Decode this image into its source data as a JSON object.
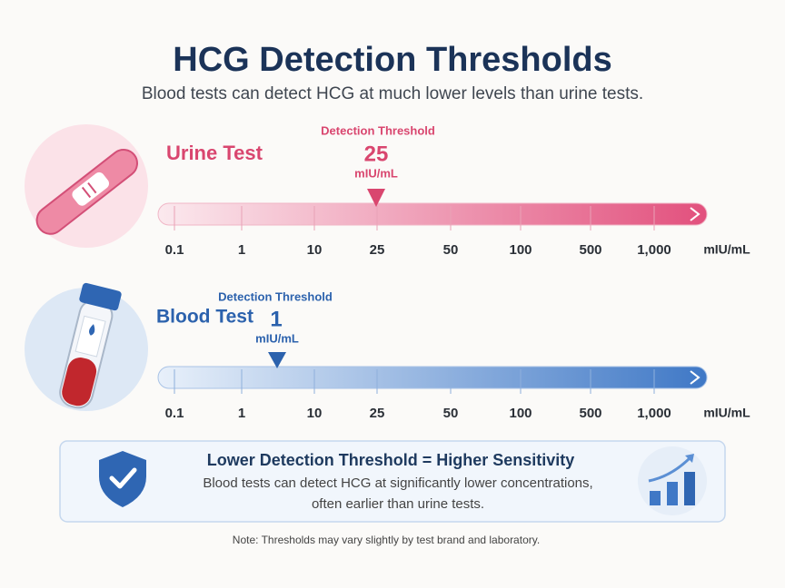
{
  "header": {
    "title": "HCG Detection Thresholds",
    "subtitle": "Blood tests can detect HCG at much lower levels than urine tests."
  },
  "scales": [
    {
      "name": "Urine Test",
      "threshold_label": "Detection Threshold",
      "threshold_value": 25,
      "threshold_unit": "mIU/mL",
      "ticks": [
        "0.1",
        "1",
        "10",
        "25",
        "50",
        "100",
        "500",
        "1,000"
      ],
      "axis_unit": "mIU/mL"
    },
    {
      "name": "Blood Test",
      "threshold_label": "Detection Threshold",
      "threshold_value": 1,
      "threshold_unit": "mIU/mL",
      "ticks": [
        "0.1",
        "1",
        "10",
        "25",
        "50",
        "100",
        "500",
        "1,000"
      ],
      "axis_unit": "mIU/mL"
    }
  ],
  "callout": {
    "title": "Lower Detection Threshold = Higher Sensitivity",
    "lines": [
      "Blood tests can detect HCG at significantly lower concentrations,",
      "often earlier than urine tests."
    ]
  },
  "note": "Note: Thresholds may vary slightly by test brand and laboratory."
}
